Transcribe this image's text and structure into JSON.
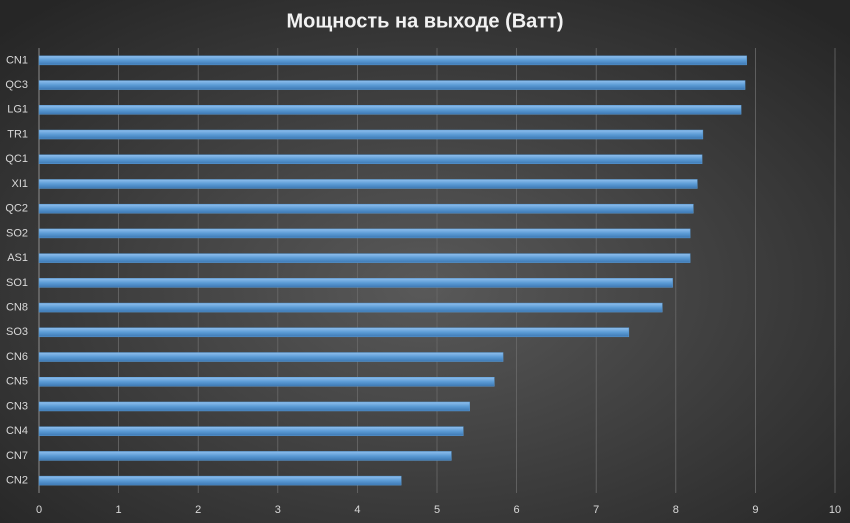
{
  "chart_data": {
    "type": "bar",
    "orientation": "horizontal",
    "title": "Мощность на выходе (Ватт)",
    "categories": [
      "CN1",
      "QC3",
      "LG1",
      "TR1",
      "QC1",
      "XI1",
      "QC2",
      "SO2",
      "AS1",
      "SO1",
      "CN8",
      "SO3",
      "CN6",
      "CN5",
      "CN3",
      "CN4",
      "CN7",
      "CN2"
    ],
    "values": [
      8.89,
      8.87,
      8.82,
      8.34,
      8.33,
      8.27,
      8.22,
      8.18,
      8.18,
      7.96,
      7.83,
      7.41,
      5.83,
      5.72,
      5.41,
      5.33,
      5.18,
      4.55
    ],
    "color": "#5b9bd5",
    "xlim": [
      0,
      10
    ],
    "xticks": [
      0,
      1,
      2,
      3,
      4,
      5,
      6,
      7,
      8,
      9,
      10
    ],
    "grid": true
  }
}
